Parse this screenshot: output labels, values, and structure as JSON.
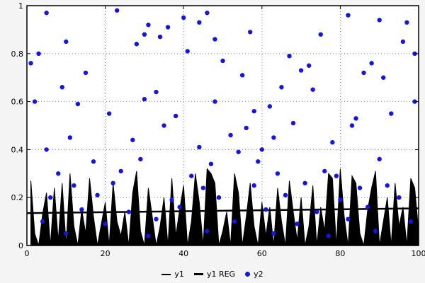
{
  "legend": [
    {
      "label": "y1"
    },
    {
      "label": "y1 REG"
    },
    {
      "label": "y2"
    }
  ],
  "colors": {
    "y1": "#000000",
    "y1_reg": "#000000",
    "y2": "#1515e0",
    "grid": "#808080",
    "plot_background": "#ffffff",
    "page_background": "#f4f4f4"
  },
  "chart_data": {
    "type": "mixed",
    "title": "",
    "xlabel": "",
    "ylabel": "",
    "xlim": [
      0,
      100
    ],
    "ylim": [
      0,
      1
    ],
    "xticks": [
      0,
      20,
      40,
      60,
      80,
      100
    ],
    "yticks": [
      0,
      0.2,
      0.4,
      0.6,
      0.8,
      1
    ],
    "xtick_labels": [
      "0",
      "20",
      "40",
      "60",
      "80",
      "100"
    ],
    "ytick_labels": [
      "0",
      "0.2",
      "0.4",
      "0.6",
      "0.8",
      "1"
    ],
    "grid": "dotted",
    "legend_position": "bottom-center",
    "series": [
      {
        "name": "y1",
        "type": "area",
        "color": "#000000",
        "x": [
          1,
          2,
          3,
          4,
          5,
          6,
          7,
          8,
          9,
          10,
          11,
          12,
          13,
          14,
          15,
          16,
          17,
          18,
          19,
          20,
          21,
          22,
          23,
          24,
          25,
          26,
          27,
          28,
          29,
          30,
          31,
          32,
          33,
          34,
          35,
          36,
          37,
          38,
          39,
          40,
          41,
          42,
          43,
          44,
          45,
          46,
          47,
          48,
          49,
          50,
          51,
          52,
          53,
          54,
          55,
          56,
          57,
          58,
          59,
          60,
          61,
          62,
          63,
          64,
          65,
          66,
          67,
          68,
          69,
          70,
          71,
          72,
          73,
          74,
          75,
          76,
          77,
          78,
          79,
          80,
          81,
          82,
          83,
          84,
          85,
          86,
          87,
          88,
          89,
          90,
          91,
          92,
          93,
          94,
          95,
          96,
          97,
          98,
          99,
          100
        ],
        "values": [
          0.27,
          0.05,
          0.0,
          0.13,
          0.22,
          0.0,
          0.24,
          0.02,
          0.26,
          0.0,
          0.3,
          0.08,
          0.0,
          0.15,
          0.05,
          0.28,
          0.12,
          0.0,
          0.09,
          0.18,
          0.0,
          0.26,
          0.1,
          0.04,
          0.14,
          0.0,
          0.22,
          0.31,
          0.06,
          0.0,
          0.24,
          0.12,
          0.0,
          0.08,
          0.2,
          0.0,
          0.28,
          0.04,
          0.15,
          0.25,
          0.0,
          0.1,
          0.3,
          0.18,
          0.0,
          0.32,
          0.3,
          0.26,
          0.0,
          0.06,
          0.14,
          0.0,
          0.3,
          0.22,
          0.0,
          0.12,
          0.26,
          0.08,
          0.0,
          0.18,
          0.04,
          0.16,
          0.0,
          0.24,
          0.1,
          0.0,
          0.27,
          0.14,
          0.02,
          0.2,
          0.0,
          0.08,
          0.25,
          0.0,
          0.16,
          0.06,
          0.3,
          0.28,
          0.0,
          0.32,
          0.12,
          0.0,
          0.29,
          0.26,
          0.05,
          0.0,
          0.15,
          0.24,
          0.31,
          0.0,
          0.1,
          0.2,
          0.0,
          0.26,
          0.08,
          0.16,
          0.0,
          0.28,
          0.24,
          0.06
        ]
      },
      {
        "name": "y1 REG",
        "type": "line",
        "color": "#000000",
        "x": [
          0,
          100
        ],
        "values": [
          0.135,
          0.155
        ]
      },
      {
        "name": "y2",
        "type": "scatter",
        "color": "#1515e0",
        "points": [
          [
            5,
            0.97
          ],
          [
            23,
            0.98
          ],
          [
            40,
            0.95
          ],
          [
            46,
            0.97
          ],
          [
            82,
            0.96
          ],
          [
            97,
            0.93
          ],
          [
            31,
            0.92
          ],
          [
            36,
            0.91
          ],
          [
            44,
            0.93
          ],
          [
            90,
            0.94
          ],
          [
            30,
            0.88
          ],
          [
            34,
            0.87
          ],
          [
            57,
            0.89
          ],
          [
            75,
            0.88
          ],
          [
            10,
            0.85
          ],
          [
            28,
            0.84
          ],
          [
            48,
            0.86
          ],
          [
            96,
            0.85
          ],
          [
            3,
            0.8
          ],
          [
            41,
            0.81
          ],
          [
            67,
            0.79
          ],
          [
            99,
            0.8
          ],
          [
            1,
            0.76
          ],
          [
            50,
            0.77
          ],
          [
            72,
            0.75
          ],
          [
            88,
            0.76
          ],
          [
            15,
            0.72
          ],
          [
            55,
            0.71
          ],
          [
            70,
            0.73
          ],
          [
            86,
            0.72
          ],
          [
            91,
            0.7
          ],
          [
            9,
            0.66
          ],
          [
            33,
            0.64
          ],
          [
            65,
            0.66
          ],
          [
            73,
            0.65
          ],
          [
            2,
            0.6
          ],
          [
            13,
            0.59
          ],
          [
            30,
            0.61
          ],
          [
            48,
            0.6
          ],
          [
            62,
            0.58
          ],
          [
            99,
            0.6
          ],
          [
            21,
            0.55
          ],
          [
            38,
            0.54
          ],
          [
            58,
            0.56
          ],
          [
            84,
            0.53
          ],
          [
            93,
            0.55
          ],
          [
            35,
            0.5
          ],
          [
            56,
            0.49
          ],
          [
            68,
            0.51
          ],
          [
            83,
            0.5
          ],
          [
            11,
            0.45
          ],
          [
            27,
            0.44
          ],
          [
            52,
            0.46
          ],
          [
            63,
            0.45
          ],
          [
            78,
            0.43
          ],
          [
            5,
            0.4
          ],
          [
            44,
            0.41
          ],
          [
            54,
            0.39
          ],
          [
            60,
            0.4
          ],
          [
            17,
            0.35
          ],
          [
            29,
            0.36
          ],
          [
            47,
            0.34
          ],
          [
            59,
            0.35
          ],
          [
            90,
            0.36
          ],
          [
            8,
            0.3
          ],
          [
            24,
            0.31
          ],
          [
            42,
            0.29
          ],
          [
            64,
            0.3
          ],
          [
            76,
            0.31
          ],
          [
            79,
            0.29
          ],
          [
            12,
            0.25
          ],
          [
            22,
            0.26
          ],
          [
            45,
            0.24
          ],
          [
            58,
            0.25
          ],
          [
            71,
            0.26
          ],
          [
            85,
            0.24
          ],
          [
            92,
            0.25
          ],
          [
            6,
            0.2
          ],
          [
            18,
            0.21
          ],
          [
            37,
            0.19
          ],
          [
            49,
            0.2
          ],
          [
            66,
            0.21
          ],
          [
            80,
            0.19
          ],
          [
            95,
            0.2
          ],
          [
            14,
            0.15
          ],
          [
            26,
            0.14
          ],
          [
            39,
            0.16
          ],
          [
            61,
            0.15
          ],
          [
            74,
            0.14
          ],
          [
            87,
            0.16
          ],
          [
            4,
            0.1
          ],
          [
            20,
            0.09
          ],
          [
            33,
            0.11
          ],
          [
            53,
            0.1
          ],
          [
            69,
            0.09
          ],
          [
            82,
            0.11
          ],
          [
            98,
            0.1
          ],
          [
            10,
            0.05
          ],
          [
            31,
            0.04
          ],
          [
            46,
            0.06
          ],
          [
            63,
            0.05
          ],
          [
            77,
            0.04
          ],
          [
            89,
            0.06
          ]
        ]
      }
    ]
  }
}
